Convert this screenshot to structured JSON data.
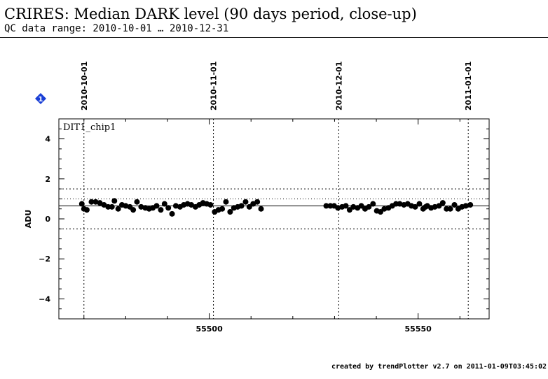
{
  "header": {
    "title": "CRIRES: Median DARK level (90 days period, close-up)",
    "subtitle": "QC data range: 2010-10-01 … 2010-12-31"
  },
  "footer": {
    "text": "created by trendPlotter v2.7 on 2011-01-09T03:45:02"
  },
  "marker": {
    "label": "1",
    "color": "#1a3fd6"
  },
  "chart_data": {
    "type": "scatter",
    "panel_label": "DIT1_chip1",
    "ylabel": "ADU",
    "xlabel": "",
    "xlim": [
      55464,
      55567
    ],
    "ylim": [
      -5,
      5
    ],
    "x_ticks": [
      55500,
      55550
    ],
    "y_ticks": [
      -4,
      -2,
      0,
      2,
      4
    ],
    "date_ticks": [
      {
        "mjd": 55470,
        "label": "2010-10-01"
      },
      {
        "mjd": 55501,
        "label": "2010-11-01"
      },
      {
        "mjd": 55531,
        "label": "2010-12-01"
      },
      {
        "mjd": 55562,
        "label": "2011-01-01"
      }
    ],
    "reference_line": 0.65,
    "threshold_lines": [
      1.5,
      -0.5
    ],
    "dotted_horizontal": [
      1.0
    ],
    "grid": false,
    "series": [
      {
        "color": "#000000",
        "x": [
          55469.5,
          55470,
          55470.7,
          55471.8,
          55472.8,
          55473.8,
          55474.8,
          55475.8,
          55476.7,
          55477.3,
          55478.2,
          55479.1,
          55480,
          55481,
          55481.8,
          55482.7,
          55483.7,
          55484.7,
          55485.6,
          55486.5,
          55487.4,
          55488.4,
          55489.3,
          55490.2,
          55491.1,
          55492,
          55493,
          55493.9,
          55494.8,
          55495.7,
          55496.7,
          55497.6,
          55498.5,
          55499.4,
          55500.3,
          55501.3,
          55502.2,
          55503.1,
          55504,
          55505,
          55505.9,
          55506.8,
          55507.7,
          55508.7,
          55509.6,
          55510.5,
          55511.5,
          55512.4,
          55528,
          55529,
          55529.9,
          55530.8,
          55531.8,
          55532.7,
          55533.6,
          55534.5,
          55535.5,
          55536.4,
          55537.3,
          55538.2,
          55539.2,
          55540.1,
          55541,
          55541.9,
          55542.9,
          55543.8,
          55544.7,
          55545.6,
          55546.6,
          55547.5,
          55548.4,
          55549.3,
          55550.3,
          55551.2,
          55551.8,
          55552.2,
          55553.1,
          55554,
          55555,
          55555.9,
          55556.8,
          55557.7,
          55558.7,
          55559.6,
          55560.5,
          55561.4,
          55562.5
        ],
        "y": [
          0.75,
          0.5,
          0.45,
          0.85,
          0.85,
          0.8,
          0.7,
          0.6,
          0.6,
          0.9,
          0.5,
          0.7,
          0.65,
          0.6,
          0.45,
          0.85,
          0.6,
          0.55,
          0.5,
          0.55,
          0.65,
          0.45,
          0.75,
          0.55,
          0.25,
          0.65,
          0.6,
          0.7,
          0.75,
          0.7,
          0.6,
          0.7,
          0.8,
          0.75,
          0.7,
          0.35,
          0.45,
          0.5,
          0.85,
          0.35,
          0.55,
          0.6,
          0.65,
          0.85,
          0.6,
          0.75,
          0.85,
          0.5,
          0.65,
          0.65,
          0.65,
          0.55,
          0.6,
          0.65,
          0.45,
          0.6,
          0.55,
          0.65,
          0.5,
          0.6,
          0.75,
          0.4,
          0.35,
          0.5,
          0.55,
          0.65,
          0.75,
          0.75,
          0.7,
          0.75,
          0.65,
          0.6,
          0.75,
          0.5,
          0.6,
          0.65,
          0.55,
          0.6,
          0.65,
          0.8,
          0.5,
          0.5,
          0.7,
          0.5,
          0.6,
          0.65,
          0.7
        ]
      }
    ]
  }
}
